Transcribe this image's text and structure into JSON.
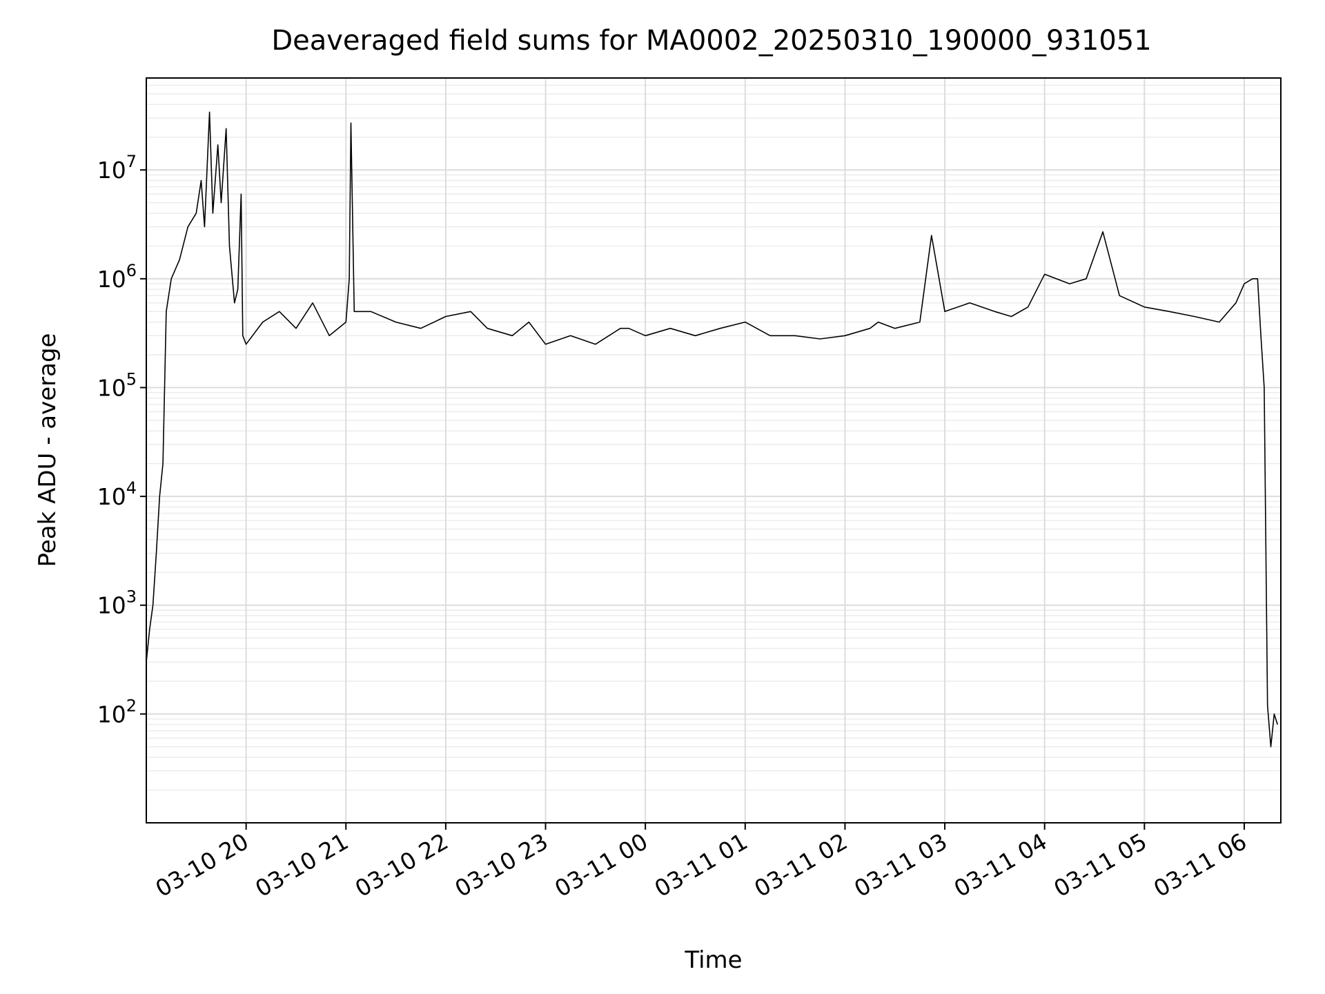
{
  "chart_data": {
    "type": "line",
    "title": "Deaveraged field sums for MA0002_20250310_190000_931051",
    "xlabel": "Time",
    "ylabel": "Peak ADU - average",
    "yscale": "log",
    "ylim": [
      10,
      70000000
    ],
    "xlim": [
      "2025-03-10 19:00",
      "2025-03-11 06:22"
    ],
    "grid": true,
    "line_color": "#000000",
    "x_ticks": [
      {
        "value": "2025-03-10 20:00",
        "label": "03-10 20"
      },
      {
        "value": "2025-03-10 21:00",
        "label": "03-10 21"
      },
      {
        "value": "2025-03-10 22:00",
        "label": "03-10 22"
      },
      {
        "value": "2025-03-10 23:00",
        "label": "03-10 23"
      },
      {
        "value": "2025-03-11 00:00",
        "label": "03-11 00"
      },
      {
        "value": "2025-03-11 01:00",
        "label": "03-11 01"
      },
      {
        "value": "2025-03-11 02:00",
        "label": "03-11 02"
      },
      {
        "value": "2025-03-11 03:00",
        "label": "03-11 03"
      },
      {
        "value": "2025-03-11 04:00",
        "label": "03-11 04"
      },
      {
        "value": "2025-03-11 05:00",
        "label": "03-11 05"
      },
      {
        "value": "2025-03-11 06:00",
        "label": "03-11 06"
      }
    ],
    "y_ticks": [
      {
        "value": 100,
        "base": "10",
        "exp": "2"
      },
      {
        "value": 1000,
        "base": "10",
        "exp": "3"
      },
      {
        "value": 10000,
        "base": "10",
        "exp": "4"
      },
      {
        "value": 100000,
        "base": "10",
        "exp": "5"
      },
      {
        "value": 1000000,
        "base": "10",
        "exp": "6"
      },
      {
        "value": 10000000,
        "base": "10",
        "exp": "7"
      }
    ],
    "series": [
      {
        "x": [
          "2025-03-10 19:00",
          "2025-03-10 19:02",
          "2025-03-10 19:04",
          "2025-03-10 19:06",
          "2025-03-10 19:08",
          "2025-03-10 19:10",
          "2025-03-10 19:12",
          "2025-03-10 19:15",
          "2025-03-10 19:20",
          "2025-03-10 19:25",
          "2025-03-10 19:30",
          "2025-03-10 19:33",
          "2025-03-10 19:35",
          "2025-03-10 19:38",
          "2025-03-10 19:40",
          "2025-03-10 19:43",
          "2025-03-10 19:45",
          "2025-03-10 19:48",
          "2025-03-10 19:50",
          "2025-03-10 19:53",
          "2025-03-10 19:55",
          "2025-03-10 19:57",
          "2025-03-10 19:58",
          "2025-03-10 20:00",
          "2025-03-10 20:10",
          "2025-03-10 20:20",
          "2025-03-10 20:30",
          "2025-03-10 20:40",
          "2025-03-10 20:50",
          "2025-03-10 21:00",
          "2025-03-10 21:02",
          "2025-03-10 21:03",
          "2025-03-10 21:05",
          "2025-03-10 21:15",
          "2025-03-10 21:30",
          "2025-03-10 21:45",
          "2025-03-10 22:00",
          "2025-03-10 22:15",
          "2025-03-10 22:25",
          "2025-03-10 22:40",
          "2025-03-10 22:50",
          "2025-03-10 23:00",
          "2025-03-10 23:15",
          "2025-03-10 23:30",
          "2025-03-10 23:45",
          "2025-03-10 23:50",
          "2025-03-11 00:00",
          "2025-03-11 00:15",
          "2025-03-11 00:30",
          "2025-03-11 00:45",
          "2025-03-11 01:00",
          "2025-03-11 01:15",
          "2025-03-11 01:30",
          "2025-03-11 01:45",
          "2025-03-11 02:00",
          "2025-03-11 02:15",
          "2025-03-11 02:20",
          "2025-03-11 02:30",
          "2025-03-11 02:45",
          "2025-03-11 02:52",
          "2025-03-11 03:00",
          "2025-03-11 03:15",
          "2025-03-11 03:30",
          "2025-03-11 03:40",
          "2025-03-11 03:50",
          "2025-03-11 04:00",
          "2025-03-11 04:15",
          "2025-03-11 04:25",
          "2025-03-11 04:35",
          "2025-03-11 04:45",
          "2025-03-11 05:00",
          "2025-03-11 05:15",
          "2025-03-11 05:30",
          "2025-03-11 05:45",
          "2025-03-11 05:55",
          "2025-03-11 06:00",
          "2025-03-11 06:05",
          "2025-03-11 06:08",
          "2025-03-11 06:10",
          "2025-03-11 06:12",
          "2025-03-11 06:14",
          "2025-03-11 06:16",
          "2025-03-11 06:18",
          "2025-03-11 06:20"
        ],
        "y": [
          300,
          600,
          1000,
          3000,
          10000,
          20000,
          500000,
          1000000,
          1500000,
          3000000,
          4000000,
          8000000,
          3000000,
          34000000,
          4000000,
          17000000,
          5000000,
          24000000,
          2000000,
          600000,
          800000,
          6000000,
          300000,
          250000,
          400000,
          500000,
          350000,
          600000,
          300000,
          400000,
          1000000,
          27000000,
          500000,
          500000,
          400000,
          350000,
          450000,
          500000,
          350000,
          300000,
          400000,
          250000,
          300000,
          250000,
          350000,
          350000,
          300000,
          350000,
          300000,
          350000,
          400000,
          300000,
          300000,
          280000,
          300000,
          350000,
          400000,
          350000,
          400000,
          2500000,
          500000,
          600000,
          500000,
          450000,
          550000,
          1100000,
          900000,
          1000000,
          2700000,
          700000,
          550000,
          500000,
          450000,
          400000,
          600000,
          900000,
          1000000,
          1000000,
          300000,
          100000,
          120,
          50,
          100,
          80
        ]
      }
    ]
  }
}
